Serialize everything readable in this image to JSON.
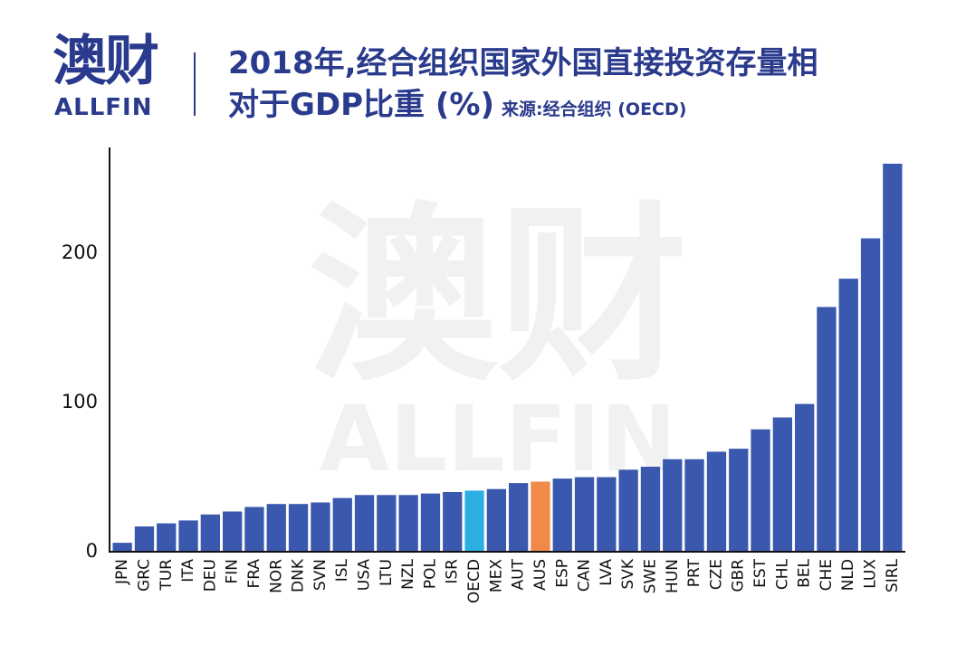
{
  "logo": {
    "cn": "澳财",
    "en": "ALLFIN"
  },
  "watermark": {
    "cn": "澳财",
    "en": "ALLFIN"
  },
  "header": {
    "title_line1": "2018年,经合组织国家外国直接投资存量相",
    "title_line2": "对于GDP比重 (%)",
    "source": "来源:经合组织 (OECD)"
  },
  "colors": {
    "bar": "#3a58ad",
    "oecd": "#2bafe3",
    "aus": "#ef8a49",
    "text": "#2a3a8c"
  },
  "chart_data": {
    "type": "bar",
    "title": "2018年,经合组织国家外国直接投资存量相对于GDP比重 (%)",
    "categories": [
      "JPN",
      "GRC",
      "TUR",
      "ITA",
      "DEU",
      "FIN",
      "FRA",
      "NOR",
      "DNK",
      "SVN",
      "ISL",
      "USA",
      "LTU",
      "NZL",
      "POL",
      "ISR",
      "OECD",
      "MEX",
      "AUT",
      "AUS",
      "ESP",
      "CAN",
      "LVA",
      "SVK",
      "SWE",
      "HUN",
      "PRT",
      "CZE",
      "GBR",
      "EST",
      "CHL",
      "BEL",
      "CHE",
      "NLD",
      "LUX",
      "SIRL"
    ],
    "values": [
      6,
      17,
      19,
      21,
      25,
      27,
      30,
      32,
      32,
      33,
      36,
      38,
      38,
      38,
      39,
      40,
      41,
      42,
      46,
      47,
      49,
      50,
      50,
      55,
      57,
      62,
      62,
      67,
      69,
      82,
      90,
      99,
      164,
      183,
      210,
      260
    ],
    "highlight": {
      "OECD": "#2bafe3",
      "AUS": "#ef8a49"
    },
    "yticks": [
      0,
      100,
      200
    ],
    "ylim": [
      0,
      270
    ],
    "xlabel": "",
    "ylabel": "",
    "grid": false,
    "legend": "none"
  }
}
